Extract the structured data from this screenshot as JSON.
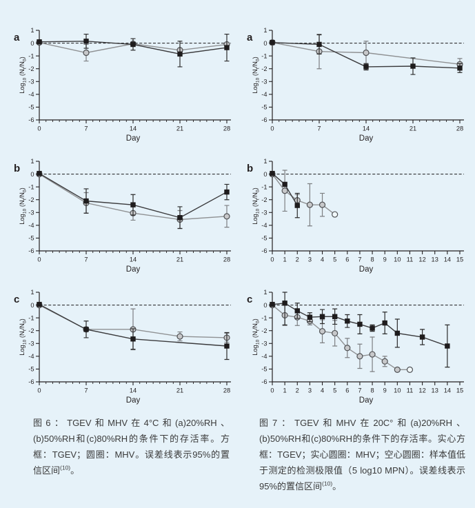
{
  "page": {
    "background": "#e6f2f9"
  },
  "chart_style": {
    "colors": {
      "axis": "#231f20",
      "text": "#231f20",
      "zero_line": "#1a1a1a",
      "open_fill": "#f2f9fc"
    },
    "ylabel_parts": [
      {
        "t": "Log"
      },
      {
        "t": "10",
        "sub": true
      },
      {
        "t": " (N"
      },
      {
        "t": "t",
        "sub": true
      },
      {
        "t": "/N"
      },
      {
        "t": "0",
        "sub": true
      },
      {
        "t": ")"
      }
    ],
    "markers": {
      "square": {
        "line": "#3a3a3c",
        "fill": "#1e1c1d",
        "stroke": "#1e1c1d",
        "err": "#2b2b2b"
      },
      "circle": {
        "line": "#8f9193",
        "fill": "#c7c8ca",
        "stroke": "#4f5154",
        "err": "#7d7f82"
      }
    }
  },
  "chart_data": [
    {
      "id": "fig6a",
      "figure": "图6",
      "panel_label": "a",
      "type": "line",
      "xlabel": "Day",
      "ylabel": "Log10 (Nt/N0)",
      "xlim": [
        0,
        28
      ],
      "xticks": [
        0,
        7,
        14,
        21,
        28
      ],
      "minor_xtick_step": 1,
      "ylim": [
        -6,
        1
      ],
      "yticks": [
        1,
        0,
        -1,
        -2,
        -3,
        -4,
        -5,
        -6
      ],
      "zero_line": "dashed",
      "series": [
        {
          "name": "MHV",
          "marker": "circle",
          "x": [
            0,
            7,
            14,
            21,
            28
          ],
          "y": [
            0.05,
            -0.75,
            -0.05,
            -0.55,
            -0.1
          ],
          "err": [
            null,
            0.65,
            null,
            null,
            null
          ]
        },
        {
          "name": "TGEV",
          "marker": "square",
          "x": [
            0,
            7,
            14,
            21,
            28
          ],
          "y": [
            0.1,
            0.15,
            -0.1,
            -0.85,
            -0.35
          ],
          "err": [
            null,
            0.55,
            0.45,
            1.0,
            1.05
          ]
        }
      ]
    },
    {
      "id": "fig7a",
      "figure": "图7",
      "panel_label": "a",
      "type": "line",
      "xlabel": "Day",
      "ylabel": "Log10 (Nt/N0)",
      "xlim": [
        0,
        28
      ],
      "xticks": [
        0,
        7,
        14,
        21,
        28
      ],
      "minor_xtick_step": 1,
      "ylim": [
        -6,
        1
      ],
      "yticks": [
        1,
        0,
        -1,
        -2,
        -3,
        -4,
        -5,
        -6
      ],
      "zero_line": "dashed",
      "series": [
        {
          "name": "MHV",
          "marker": "circle",
          "x": [
            0,
            7,
            14,
            28
          ],
          "y": [
            0.05,
            -0.65,
            -0.75,
            -1.65
          ],
          "err": [
            null,
            1.35,
            0.9,
            0.45
          ]
        },
        {
          "name": "TGEV",
          "marker": "square",
          "x": [
            0,
            7,
            14,
            21,
            28
          ],
          "y": [
            0.05,
            -0.1,
            -1.85,
            -1.8,
            -1.95
          ],
          "err": [
            null,
            0.75,
            0.25,
            0.65,
            0.35
          ]
        }
      ]
    },
    {
      "id": "fig6b",
      "figure": "图6",
      "panel_label": "b",
      "type": "line",
      "xlabel": "Day",
      "ylabel": "Log10 (Nt/N0)",
      "xlim": [
        0,
        28
      ],
      "xticks": [
        0,
        7,
        14,
        21,
        28
      ],
      "minor_xtick_step": 1,
      "ylim": [
        -6,
        1
      ],
      "yticks": [
        1,
        0,
        -1,
        -2,
        -3,
        -4,
        -5,
        -6
      ],
      "zero_line": "dashed",
      "series": [
        {
          "name": "MHV",
          "marker": "circle",
          "x": [
            0,
            7,
            14,
            21,
            28
          ],
          "y": [
            0.0,
            -2.25,
            -3.05,
            -3.55,
            -3.3
          ],
          "err": [
            null,
            0.8,
            0.55,
            0.7,
            0.85
          ]
        },
        {
          "name": "TGEV",
          "marker": "square",
          "x": [
            0,
            7,
            14,
            21,
            28
          ],
          "y": [
            0.05,
            -2.1,
            -2.4,
            -3.4,
            -1.4
          ],
          "err": [
            null,
            0.95,
            0.8,
            0.85,
            0.6
          ]
        }
      ]
    },
    {
      "id": "fig7b",
      "figure": "图7",
      "panel_label": "b",
      "type": "line",
      "xlabel": "Day",
      "ylabel": "Log10 (Nt/N0)",
      "xlim": [
        0,
        15
      ],
      "xticks": [
        0,
        1,
        2,
        3,
        4,
        5,
        6,
        7,
        8,
        9,
        10,
        11,
        12,
        13,
        14,
        15
      ],
      "minor_xtick_step": null,
      "ylim": [
        -6,
        1
      ],
      "yticks": [
        1,
        0,
        -1,
        -2,
        -3,
        -4,
        -5,
        -6
      ],
      "zero_line": "dashed",
      "series": [
        {
          "name": "MHV",
          "marker": "circle",
          "open_points": [
            5
          ],
          "x": [
            0,
            1,
            2,
            3,
            4,
            5
          ],
          "y": [
            0.0,
            -1.3,
            -2.05,
            -2.4,
            -2.4,
            -3.15
          ],
          "err": [
            null,
            1.6,
            0.45,
            1.65,
            0.9,
            null
          ]
        },
        {
          "name": "TGEV",
          "marker": "square",
          "x": [
            0,
            1,
            2
          ],
          "y": [
            0.05,
            -0.8,
            -2.45
          ],
          "err": [
            null,
            null,
            0.95
          ]
        }
      ]
    },
    {
      "id": "fig6c",
      "figure": "图6",
      "panel_label": "c",
      "type": "line",
      "xlabel": "Day",
      "ylabel": "Log10 (Nt/N0)",
      "xlim": [
        0,
        28
      ],
      "xticks": [
        0,
        7,
        14,
        21,
        28
      ],
      "minor_xtick_step": 1,
      "ylim": [
        -6,
        1
      ],
      "yticks": [
        1,
        0,
        -1,
        -2,
        -3,
        -4,
        -5,
        -6
      ],
      "zero_line": "dashed",
      "series": [
        {
          "name": "MHV",
          "marker": "circle",
          "x": [
            0,
            7,
            14,
            21,
            28
          ],
          "y": [
            0.0,
            -1.9,
            -1.9,
            -2.45,
            -2.55
          ],
          "err": [
            null,
            null,
            1.6,
            0.35,
            0.35
          ]
        },
        {
          "name": "TGEV",
          "marker": "square",
          "x": [
            0,
            7,
            14,
            28
          ],
          "y": [
            0.05,
            -1.9,
            -2.65,
            -3.2
          ],
          "err": [
            null,
            0.65,
            0.8,
            1.05
          ]
        }
      ]
    },
    {
      "id": "fig7c",
      "figure": "图7",
      "panel_label": "c",
      "type": "line",
      "xlabel": "Day",
      "ylabel": "Log10 (Nt/N0)",
      "xlim": [
        0,
        15
      ],
      "xticks": [
        0,
        1,
        2,
        3,
        4,
        5,
        6,
        7,
        8,
        9,
        10,
        11,
        12,
        13,
        14,
        15
      ],
      "minor_xtick_step": null,
      "ylim": [
        -6,
        1
      ],
      "yticks": [
        1,
        0,
        -1,
        -2,
        -3,
        -4,
        -5,
        -6
      ],
      "zero_line": "dashed",
      "series": [
        {
          "name": "MHV",
          "marker": "circle",
          "open_points": [
            11
          ],
          "x": [
            0,
            1,
            2,
            3,
            4,
            5,
            6,
            7,
            8,
            9,
            10,
            11
          ],
          "y": [
            0.0,
            -0.8,
            -0.95,
            -1.25,
            -2.05,
            -2.2,
            -3.35,
            -4.0,
            -3.85,
            -4.4,
            -5.05,
            -5.05
          ],
          "err": [
            null,
            0.8,
            0.65,
            0.3,
            0.9,
            1.0,
            0.75,
            0.95,
            1.35,
            0.4,
            null,
            null
          ]
        },
        {
          "name": "TGEV",
          "marker": "square",
          "x": [
            0,
            1,
            2,
            3,
            4,
            5,
            6,
            7,
            8,
            9,
            10,
            12,
            14
          ],
          "y": [
            0.05,
            0.15,
            -0.45,
            -0.95,
            -0.9,
            -0.9,
            -1.25,
            -1.5,
            -1.8,
            -1.4,
            -2.2,
            -2.5,
            -3.2
          ],
          "err": [
            null,
            [
              1.7,
              0.85
            ],
            0.6,
            0.35,
            0.55,
            0.6,
            0.5,
            0.75,
            0.25,
            0.85,
            1.1,
            0.6,
            1.65
          ]
        }
      ]
    }
  ],
  "captions": {
    "fig6": {
      "text": "图6：TGEV和MHV在4°C和(a)20%RH、(b)50%RH和(c)80%RH的条件下的存活率。方框：TGEV；圆圈：MHV。误差线表示95%的置信区间",
      "ref": "(10)",
      "suffix": "。"
    },
    "fig7": {
      "text": "图7：TGEV和MHV在20C°和(a)20%RH、(b)50%RH和(c)80%RH的条件下的存活率。实心方框：TGEV；实心圆圈：MHV；空心圆圈：样本值低于测定的检测极限值（5 log10 MPN）。误差线表示95%的置信区间",
      "ref": "(10)",
      "suffix": "。"
    }
  }
}
